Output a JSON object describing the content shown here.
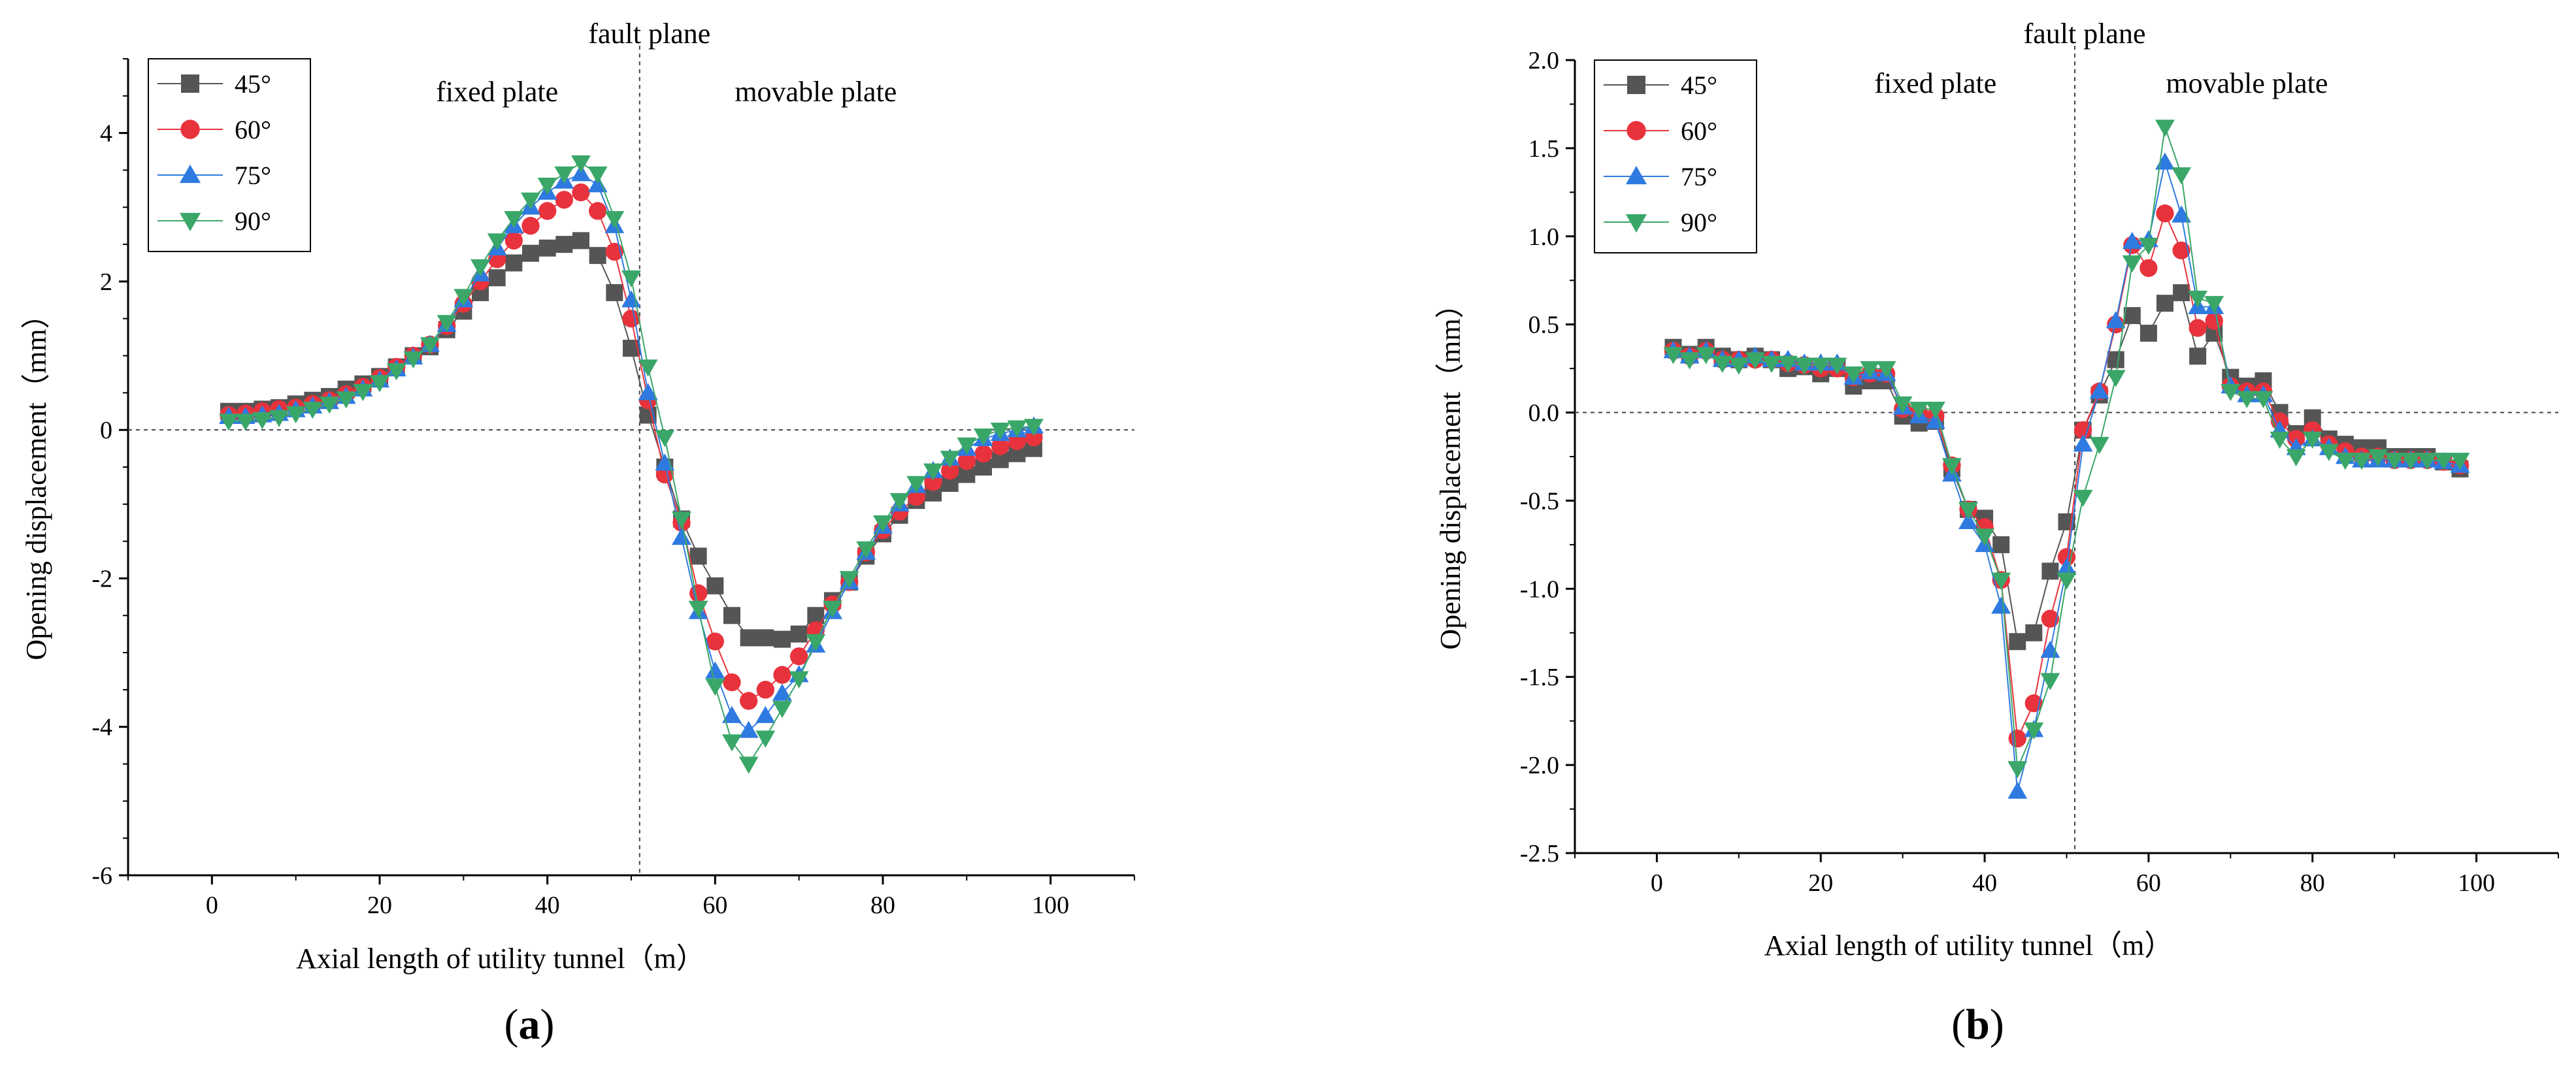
{
  "chart_data": [
    {
      "type": "line",
      "panel_label": "a",
      "xlabel": "Axial length of utility tunnel（m）",
      "ylabel": "Opening displacement（mm）",
      "xlim": [
        -10,
        110
      ],
      "ylim": [
        -6,
        5
      ],
      "xticks": [
        "0",
        "20",
        "40",
        "60",
        "80",
        "100"
      ],
      "yticks": [
        "-6",
        "-4",
        "-2",
        "0",
        "2",
        "4"
      ],
      "fault_plane_x": 51,
      "annotations": {
        "fault": "fault plane",
        "fixed": "fixed plate",
        "movable": "movable plate"
      },
      "legend_position": "top-left",
      "x": [
        2,
        4,
        6,
        8,
        10,
        12,
        14,
        16,
        18,
        20,
        22,
        24,
        26,
        28,
        30,
        32,
        34,
        36,
        38,
        40,
        42,
        44,
        46,
        48,
        50,
        52,
        54,
        56,
        58,
        60,
        62,
        64,
        66,
        68,
        70,
        72,
        74,
        76,
        78,
        80,
        82,
        84,
        86,
        88,
        90,
        92,
        94,
        96,
        98
      ],
      "series": [
        {
          "name": "45°",
          "color": "#555555",
          "marker": "square",
          "values": [
            0.25,
            0.25,
            0.28,
            0.3,
            0.35,
            0.4,
            0.45,
            0.55,
            0.62,
            0.72,
            0.85,
            1.0,
            1.12,
            1.35,
            1.6,
            1.85,
            2.05,
            2.25,
            2.38,
            2.45,
            2.5,
            2.55,
            2.35,
            1.85,
            1.1,
            0.2,
            -0.5,
            -1.2,
            -1.7,
            -2.1,
            -2.5,
            -2.8,
            -2.8,
            -2.82,
            -2.75,
            -2.5,
            -2.3,
            -2.05,
            -1.7,
            -1.4,
            -1.15,
            -0.95,
            -0.85,
            -0.72,
            -0.6,
            -0.5,
            -0.4,
            -0.32,
            -0.25
          ]
        },
        {
          "name": "60°",
          "color": "#e8323c",
          "marker": "circle",
          "values": [
            0.2,
            0.22,
            0.25,
            0.28,
            0.3,
            0.35,
            0.4,
            0.48,
            0.58,
            0.7,
            0.85,
            1.0,
            1.15,
            1.4,
            1.7,
            2.0,
            2.3,
            2.55,
            2.75,
            2.95,
            3.1,
            3.2,
            2.95,
            2.4,
            1.5,
            0.4,
            -0.6,
            -1.25,
            -2.2,
            -2.85,
            -3.4,
            -3.65,
            -3.5,
            -3.3,
            -3.05,
            -2.7,
            -2.35,
            -2.05,
            -1.65,
            -1.35,
            -1.1,
            -0.9,
            -0.7,
            -0.55,
            -0.42,
            -0.32,
            -0.22,
            -0.15,
            -0.1
          ]
        },
        {
          "name": "75°",
          "color": "#2f7ae0",
          "marker": "triangle-up",
          "values": [
            0.18,
            0.18,
            0.2,
            0.22,
            0.27,
            0.32,
            0.38,
            0.45,
            0.55,
            0.67,
            0.82,
            0.98,
            1.15,
            1.42,
            1.75,
            2.1,
            2.45,
            2.75,
            3.0,
            3.2,
            3.35,
            3.45,
            3.3,
            2.75,
            1.75,
            0.5,
            -0.45,
            -1.45,
            -2.45,
            -3.25,
            -3.85,
            -4.05,
            -3.85,
            -3.55,
            -3.3,
            -2.9,
            -2.45,
            -2.05,
            -1.65,
            -1.3,
            -1.0,
            -0.75,
            -0.55,
            -0.38,
            -0.25,
            -0.12,
            -0.05,
            0.0,
            0.05
          ]
        },
        {
          "name": "90°",
          "color": "#3aa769",
          "marker": "triangle-down",
          "values": [
            0.12,
            0.12,
            0.14,
            0.17,
            0.22,
            0.28,
            0.35,
            0.42,
            0.52,
            0.64,
            0.8,
            0.96,
            1.15,
            1.45,
            1.8,
            2.2,
            2.55,
            2.85,
            3.1,
            3.3,
            3.45,
            3.6,
            3.45,
            2.85,
            2.05,
            0.85,
            -0.1,
            -1.2,
            -2.4,
            -3.45,
            -4.2,
            -4.5,
            -4.15,
            -3.75,
            -3.35,
            -2.85,
            -2.4,
            -2.0,
            -1.6,
            -1.25,
            -0.95,
            -0.72,
            -0.55,
            -0.38,
            -0.2,
            -0.08,
            0.0,
            0.03,
            0.05
          ]
        }
      ]
    },
    {
      "type": "line",
      "panel_label": "b",
      "xlabel": "Axial length of utility tunnel（m）",
      "ylabel": "Opening displacement（mm）",
      "xlim": [
        -10,
        110
      ],
      "ylim": [
        -2.5,
        2.0
      ],
      "xticks": [
        "0",
        "20",
        "40",
        "60",
        "80",
        "100"
      ],
      "yticks": [
        "-2.5",
        "-2.0",
        "-1.5",
        "-1.0",
        "-0.5",
        "0.0",
        "0.5",
        "1.0",
        "1.5",
        "2.0"
      ],
      "fault_plane_x": 51,
      "annotations": {
        "fault": "fault plane",
        "fixed": "fixed plate",
        "movable": "movable plate"
      },
      "legend_position": "top-left",
      "x": [
        2,
        4,
        6,
        8,
        10,
        12,
        14,
        16,
        18,
        20,
        22,
        24,
        26,
        28,
        30,
        32,
        34,
        36,
        38,
        40,
        42,
        44,
        46,
        48,
        50,
        52,
        54,
        56,
        58,
        60,
        62,
        64,
        66,
        68,
        70,
        72,
        74,
        76,
        78,
        80,
        82,
        84,
        86,
        88,
        90,
        92,
        94,
        96,
        98
      ],
      "series": [
        {
          "name": "45°",
          "color": "#555555",
          "marker": "square",
          "values": [
            0.37,
            0.33,
            0.37,
            0.32,
            0.3,
            0.32,
            0.3,
            0.25,
            0.26,
            0.22,
            0.25,
            0.15,
            0.18,
            0.18,
            -0.02,
            -0.06,
            -0.05,
            -0.32,
            -0.55,
            -0.6,
            -0.75,
            -1.3,
            -1.25,
            -0.9,
            -0.62,
            -0.1,
            0.1,
            0.3,
            0.55,
            0.45,
            0.62,
            0.68,
            0.32,
            0.45,
            0.2,
            0.15,
            0.18,
            0.0,
            -0.12,
            -0.03,
            -0.15,
            -0.18,
            -0.2,
            -0.2,
            -0.25,
            -0.25,
            -0.25,
            -0.28,
            -0.32
          ]
        },
        {
          "name": "60°",
          "color": "#e8323c",
          "marker": "circle",
          "values": [
            0.35,
            0.32,
            0.35,
            0.3,
            0.3,
            0.3,
            0.3,
            0.28,
            0.27,
            0.25,
            0.25,
            0.2,
            0.22,
            0.22,
            0.02,
            0.0,
            -0.02,
            -0.3,
            -0.55,
            -0.65,
            -0.95,
            -1.85,
            -1.65,
            -1.17,
            -0.82,
            -0.1,
            0.12,
            0.5,
            0.95,
            0.82,
            1.13,
            0.92,
            0.48,
            0.52,
            0.15,
            0.12,
            0.12,
            -0.05,
            -0.15,
            -0.1,
            -0.18,
            -0.22,
            -0.25,
            -0.25,
            -0.27,
            -0.27,
            -0.27,
            -0.28,
            -0.3
          ]
        },
        {
          "name": "75°",
          "color": "#2f7ae0",
          "marker": "triangle-up",
          "values": [
            0.35,
            0.32,
            0.35,
            0.3,
            0.3,
            0.32,
            0.3,
            0.3,
            0.28,
            0.28,
            0.28,
            0.2,
            0.23,
            0.22,
            0.03,
            -0.02,
            -0.05,
            -0.35,
            -0.62,
            -0.75,
            -1.1,
            -2.15,
            -1.8,
            -1.35,
            -0.88,
            -0.18,
            0.12,
            0.52,
            0.97,
            0.98,
            1.42,
            1.12,
            0.6,
            0.6,
            0.15,
            0.1,
            0.1,
            -0.1,
            -0.2,
            -0.15,
            -0.2,
            -0.25,
            -0.27,
            -0.27,
            -0.27,
            -0.27,
            -0.27,
            -0.28,
            -0.3
          ]
        },
        {
          "name": "90°",
          "color": "#3aa769",
          "marker": "triangle-down",
          "values": [
            0.33,
            0.3,
            0.33,
            0.28,
            0.27,
            0.3,
            0.28,
            0.28,
            0.27,
            0.27,
            0.27,
            0.22,
            0.25,
            0.25,
            0.05,
            0.02,
            0.02,
            -0.3,
            -0.55,
            -0.7,
            -0.95,
            -2.02,
            -1.8,
            -1.52,
            -0.95,
            -0.48,
            -0.18,
            0.2,
            0.85,
            0.95,
            1.62,
            1.35,
            0.65,
            0.62,
            0.12,
            0.08,
            0.08,
            -0.15,
            -0.25,
            -0.15,
            -0.22,
            -0.27,
            -0.27,
            -0.25,
            -0.27,
            -0.27,
            -0.27,
            -0.27,
            -0.27
          ]
        }
      ]
    }
  ]
}
